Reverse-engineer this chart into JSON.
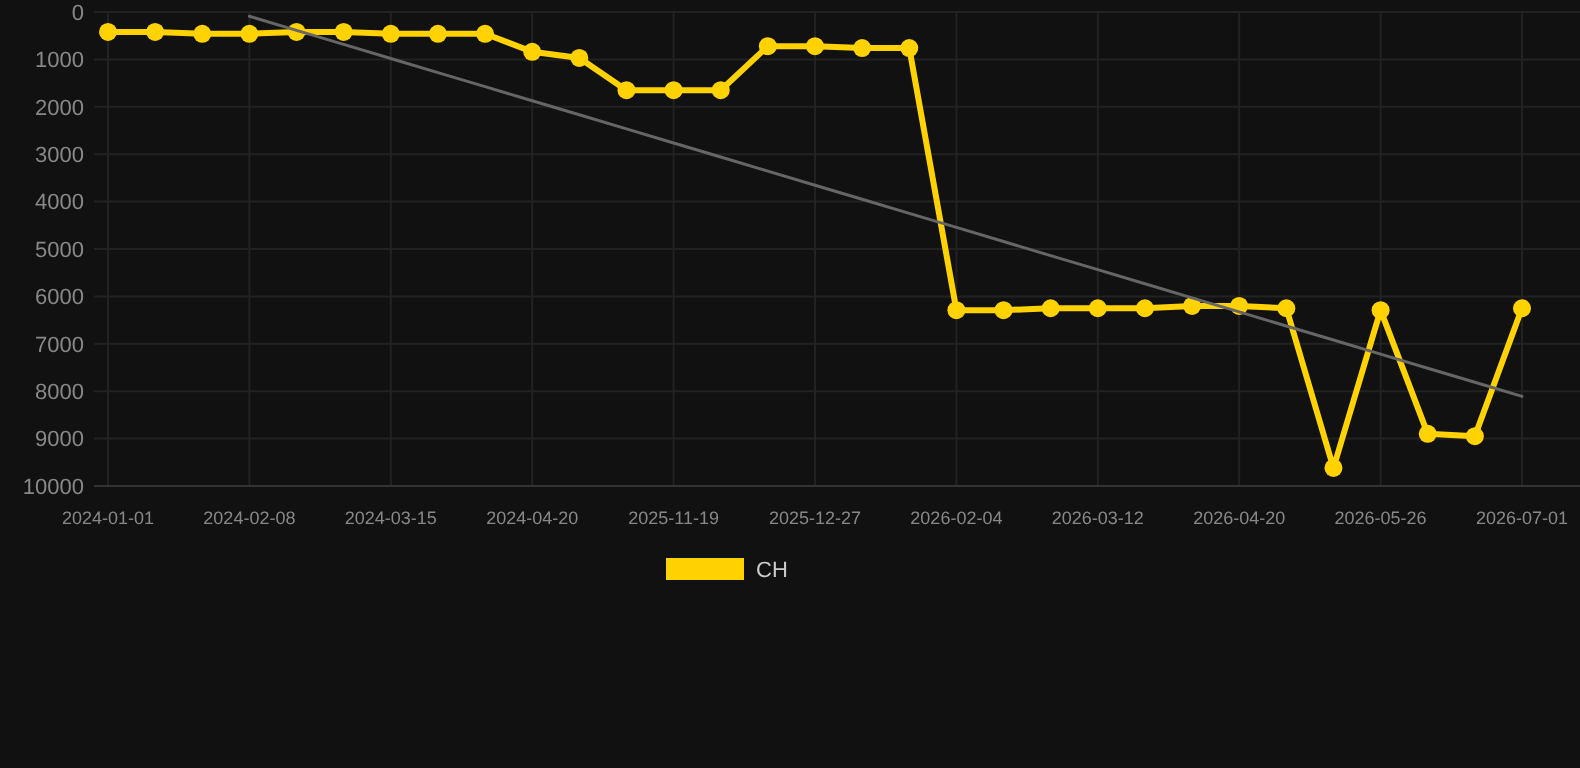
{
  "chart_data": {
    "type": "line",
    "categories": [
      "2024-01-01",
      null,
      null,
      "2024-02-08",
      null,
      null,
      "2024-03-15",
      null,
      null,
      "2024-04-20",
      null,
      null,
      "2025-11-19",
      null,
      null,
      "2025-12-27",
      null,
      null,
      "2026-02-04",
      null,
      null,
      "2026-03-12",
      null,
      null,
      "2026-04-20",
      null,
      null,
      "2026-05-26",
      null,
      null,
      "2026-07-01"
    ],
    "series": [
      {
        "name": "CH",
        "color": "#ffd200",
        "marker": "circle",
        "values": [
          420,
          420,
          460,
          460,
          420,
          420,
          460,
          460,
          460,
          840,
          970,
          1650,
          1650,
          1650,
          720,
          720,
          760,
          760,
          6290,
          6290,
          6250,
          6250,
          6250,
          6200,
          6200,
          6250,
          9620,
          6290,
          8900,
          8950,
          6250
        ]
      },
      {
        "color": "#666666",
        "marker": "none",
        "values": [
          null,
          null,
          null,
          90,
          387,
          684,
          981,
          1278,
          1575,
          1872,
          2169,
          2466,
          2763,
          3060,
          3357,
          3654,
          3951,
          4248,
          4545,
          4842,
          5139,
          5436,
          5733,
          6030,
          6327,
          6624,
          6921,
          7218,
          7515,
          7812,
          8109
        ]
      }
    ],
    "ylim": [
      10000,
      0
    ],
    "yticks": [
      0,
      1000,
      2000,
      3000,
      4000,
      5000,
      6000,
      7000,
      8000,
      9000,
      10000
    ],
    "grid": true,
    "legend": "bottom"
  }
}
